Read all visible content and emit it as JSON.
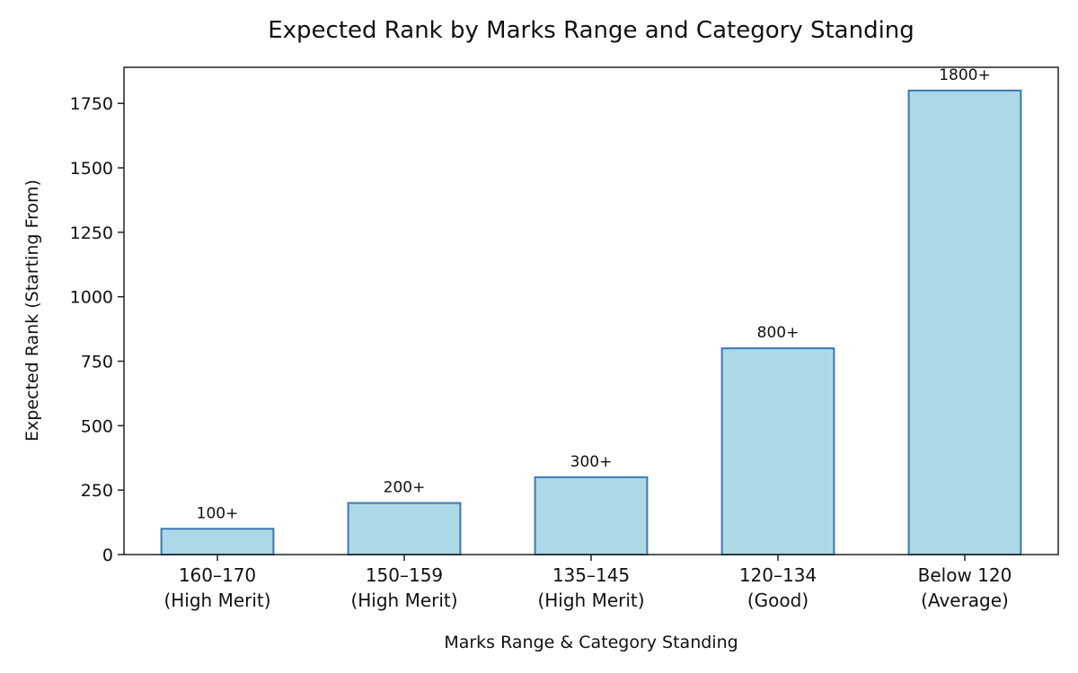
{
  "chart_data": {
    "type": "bar",
    "title": "Expected Rank by Marks Range and Category Standing",
    "xlabel": "Marks Range & Category Standing",
    "ylabel": "Expected Rank (Starting From)",
    "categories": [
      [
        "160–170",
        "(High Merit)"
      ],
      [
        "150–159",
        "(High Merit)"
      ],
      [
        "135–145",
        "(High Merit)"
      ],
      [
        "120–134",
        "(Good)"
      ],
      [
        "Below 120",
        "(Average)"
      ]
    ],
    "values": [
      100,
      200,
      300,
      800,
      1800
    ],
    "data_labels": [
      "100+",
      "200+",
      "300+",
      "800+",
      "1800+"
    ],
    "ylim": [
      0,
      1890
    ],
    "yticks": [
      0,
      250,
      500,
      750,
      1000,
      1250,
      1500,
      1750
    ],
    "grid": false,
    "colors": {
      "bar_fill": "#add8e6",
      "bar_edge": "#3a78b5"
    }
  }
}
